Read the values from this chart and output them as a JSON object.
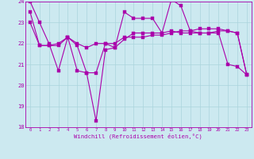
{
  "xlabel": "Windchill (Refroidissement éolien,°C)",
  "xlim": [
    -0.5,
    23.5
  ],
  "ylim": [
    18,
    24
  ],
  "yticks": [
    18,
    19,
    20,
    21,
    22,
    23,
    24
  ],
  "xtick_labels": [
    "0",
    "1",
    "2",
    "3",
    "4",
    "5",
    "6",
    "7",
    "8",
    "9",
    "10",
    "11",
    "12",
    "13",
    "14",
    "15",
    "16",
    "17",
    "18",
    "19",
    "20",
    "21",
    "22",
    "23"
  ],
  "background_color": "#cce9f0",
  "line_color": "#aa00aa",
  "grid_color": "#aad4dd",
  "line1_x": [
    0,
    1,
    2,
    3,
    4,
    5,
    6,
    7,
    8,
    9,
    10,
    11,
    12,
    13,
    14,
    15,
    16,
    17,
    18,
    19,
    20,
    21,
    22,
    23
  ],
  "line1_y": [
    24.0,
    23.0,
    22.0,
    20.7,
    22.3,
    20.7,
    20.6,
    18.3,
    21.7,
    21.8,
    23.5,
    23.2,
    23.2,
    23.2,
    22.5,
    24.1,
    23.8,
    22.6,
    22.5,
    22.5,
    22.5,
    21.0,
    20.9,
    20.5
  ],
  "line2_x": [
    0,
    1,
    2,
    3,
    4,
    5,
    6,
    7,
    8,
    9,
    10,
    11,
    12,
    13,
    14,
    15,
    16,
    17,
    18,
    19,
    20,
    21,
    22,
    23
  ],
  "line2_y": [
    23.0,
    21.9,
    21.9,
    22.0,
    22.3,
    21.9,
    20.6,
    20.6,
    22.0,
    21.8,
    22.2,
    22.5,
    22.5,
    22.5,
    22.5,
    22.6,
    22.5,
    22.5,
    22.5,
    22.5,
    22.6,
    22.6,
    22.5,
    20.5
  ],
  "line3_x": [
    0,
    1,
    2,
    3,
    4,
    5,
    6,
    7,
    8,
    9,
    10,
    11,
    12,
    13,
    14,
    15,
    16,
    17,
    18,
    19,
    20,
    21,
    22,
    23
  ],
  "line3_y": [
    23.5,
    21.9,
    21.9,
    21.9,
    22.3,
    22.0,
    21.8,
    22.0,
    22.0,
    22.0,
    22.3,
    22.3,
    22.3,
    22.4,
    22.4,
    22.5,
    22.6,
    22.6,
    22.7,
    22.7,
    22.7,
    22.6,
    22.5,
    20.5
  ]
}
